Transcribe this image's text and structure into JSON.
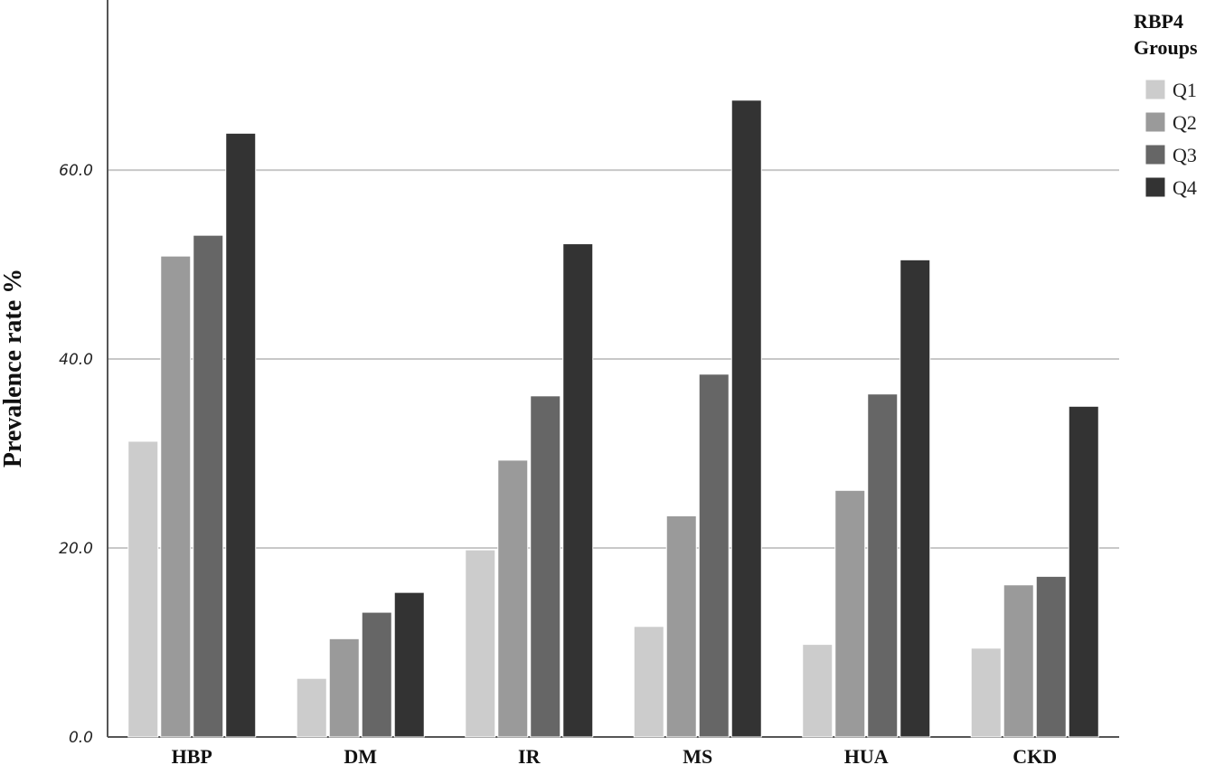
{
  "chart_data": {
    "type": "bar",
    "categories": [
      "HBP",
      "DM",
      "IR",
      "MS",
      "HUA",
      "CKD"
    ],
    "series": [
      {
        "name": "Q1",
        "color": "#cccccc",
        "values": [
          31.3,
          6.2,
          19.8,
          11.7,
          9.8,
          9.4
        ]
      },
      {
        "name": "Q2",
        "color": "#9a9a9a",
        "values": [
          50.9,
          10.4,
          29.3,
          23.4,
          26.1,
          16.1
        ]
      },
      {
        "name": "Q3",
        "color": "#666666",
        "values": [
          53.1,
          13.2,
          36.1,
          38.4,
          36.3,
          17.0
        ]
      },
      {
        "name": "Q4",
        "color": "#333333",
        "values": [
          63.9,
          15.3,
          52.2,
          67.4,
          50.5,
          35.0
        ]
      }
    ],
    "ylabel": "Prevalence rate %",
    "xlabel": "",
    "ylim": [
      0,
      78
    ],
    "yticks": [
      "0.0",
      "20.0",
      "40.0",
      "60.0"
    ],
    "ytick_values": [
      0,
      20,
      40,
      60
    ],
    "grid": true,
    "legend": {
      "title_line1": "RBP4",
      "title_line2": "Groups",
      "position": "top-right"
    }
  }
}
